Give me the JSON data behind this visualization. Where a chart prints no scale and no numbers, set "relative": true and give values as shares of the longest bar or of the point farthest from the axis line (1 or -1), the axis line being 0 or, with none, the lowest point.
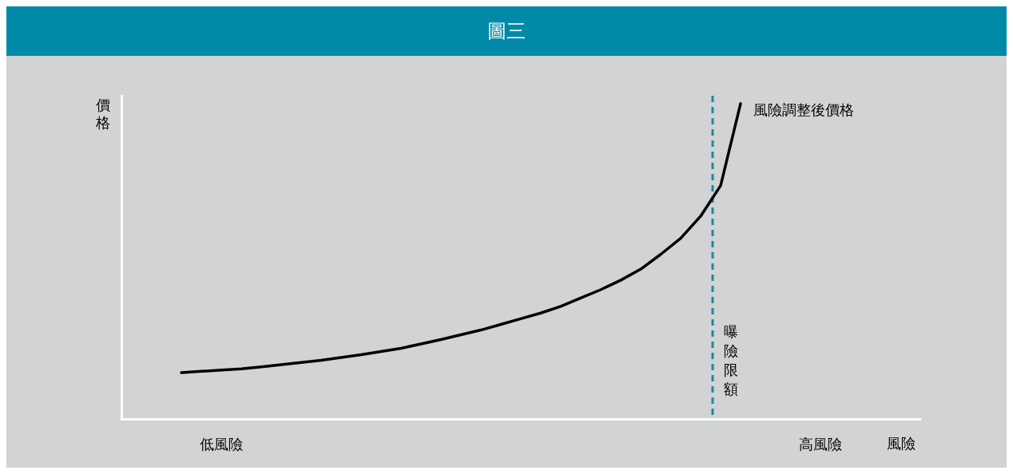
{
  "chart_data": {
    "type": "line",
    "title": "圖三",
    "xlabel": "風險",
    "ylabel": "價格",
    "relative": true,
    "tick_labels": "x",
    "marker": "none",
    "line_style": "solid",
    "categories": [
      null,
      null,
      null,
      null,
      null,
      "低風險",
      null,
      null,
      null,
      null,
      null,
      null,
      null,
      null,
      null,
      null,
      null,
      null,
      null,
      null,
      null,
      null,
      null,
      null,
      null,
      null,
      null,
      null,
      null,
      null,
      null,
      null,
      null,
      null,
      null,
      "高風險",
      null,
      null,
      null,
      null,
      null
    ],
    "series": [
      {
        "name": "風險調整後價格",
        "color": "#000000",
        "values": [
          null,
          null,
          null,
          0.147,
          0.151,
          0.155,
          0.159,
          0.165,
          0.172,
          0.179,
          0.186,
          0.195,
          0.204,
          0.214,
          0.224,
          0.238,
          0.252,
          0.267,
          0.282,
          0.3,
          0.318,
          0.336,
          0.357,
          0.384,
          0.41,
          0.44,
          0.475,
          0.522,
          0.573,
          0.643,
          0.74,
          1.0,
          null,
          null,
          null,
          null,
          null,
          null,
          null,
          null,
          null
        ]
      }
    ],
    "annotations": [
      "曝險限額"
    ]
  }
}
